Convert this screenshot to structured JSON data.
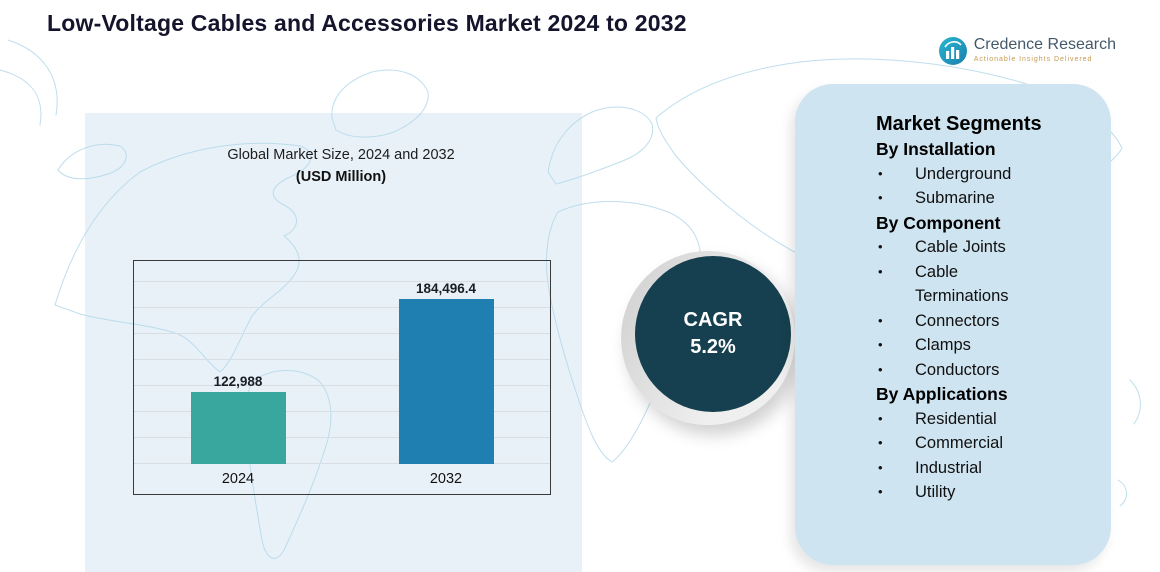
{
  "page": {
    "title": "Low-Voltage Cables and Accessories Market 2024 to 2032"
  },
  "logo": {
    "name": "Credence Research",
    "tagline": "Actionable Insights Delivered"
  },
  "chart": {
    "title": "Global Market Size, 2024 and 2032",
    "subtitle": "(USD Million)"
  },
  "chart_data": {
    "type": "bar",
    "title": "Global Market Size, 2024 and 2032",
    "units": "USD Million",
    "categories": [
      "2024",
      "2032"
    ],
    "values": [
      122988,
      184496.4
    ],
    "value_labels": [
      "122,988",
      "184,496.4"
    ],
    "bar_colors": [
      "#39a79e",
      "#1f7fb0"
    ],
    "ylim": [
      75000,
      210000
    ],
    "grid": true,
    "legend": false,
    "xlabel": "",
    "ylabel": ""
  },
  "cagr": {
    "label": "CAGR",
    "value": "5.2%"
  },
  "segments": {
    "title": "Market Segments",
    "groups": [
      {
        "heading": "By Installation",
        "items": [
          "Underground",
          "Submarine"
        ]
      },
      {
        "heading": "By Component",
        "items": [
          "Cable Joints",
          "Cable Terminations",
          "Connectors",
          "Clamps",
          "Conductors"
        ]
      },
      {
        "heading": "By Applications",
        "items": [
          "Residential",
          "Commercial",
          "Industrial",
          "Utility"
        ]
      }
    ]
  },
  "colors": {
    "bar_2024": "#39a79e",
    "bar_2032": "#1f7fb0",
    "cagr_circle": "#16404f",
    "segments_panel": "#cfe4f1",
    "chart_panel": "#e8f1f8",
    "map_line": "#b4d8ea"
  }
}
